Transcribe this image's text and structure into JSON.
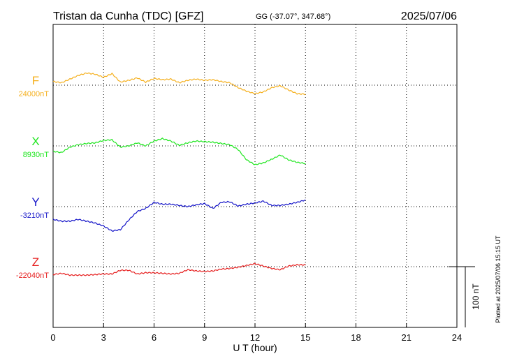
{
  "header": {
    "station": "Tristan da Cunha (TDC)  [GFZ]",
    "coords": "GG (-37.07°, 347.68°)",
    "date": "2025/07/06"
  },
  "side_note": "Plotted at 2025/07/06 15:15 UT",
  "colors": {
    "F": "#f5b01e",
    "X": "#1ee61e",
    "Y": "#1414c8",
    "Z": "#e61e1e",
    "axis": "#000000",
    "grid": "#000000"
  },
  "chart_data": {
    "type": "line",
    "title": "Tristan da Cunha (TDC)  [GFZ]",
    "xlabel": "U T (hour)",
    "xlim": [
      0,
      24
    ],
    "xticks": [
      0,
      3,
      6,
      9,
      12,
      15,
      18,
      21,
      24
    ],
    "scale_bar": "100 nT",
    "scale_bar_nT": 100,
    "grid": true,
    "series": [
      {
        "name": "F",
        "baseline_label": "24000nT",
        "baseline_nT": 24000,
        "x": [
          0,
          0.5,
          1,
          1.5,
          2,
          2.5,
          3,
          3.5,
          4,
          4.5,
          5,
          5.5,
          6,
          6.5,
          7,
          7.5,
          8,
          8.5,
          9,
          9.5,
          10,
          10.5,
          11,
          11.5,
          12,
          12.5,
          13,
          13.5,
          14,
          14.5,
          15
        ],
        "y": [
          24006,
          24004,
          24010,
          24016,
          24020,
          24018,
          24013,
          24019,
          24005,
          24008,
          24012,
          24005,
          24011,
          24009,
          24010,
          24004,
          24008,
          24010,
          24008,
          24009,
          24006,
          24004,
          23996,
          23990,
          23986,
          23989,
          23996,
          23999,
          23992,
          23986,
          23985
        ]
      },
      {
        "name": "X",
        "baseline_label": "8930nT",
        "baseline_nT": 8930,
        "x": [
          0,
          0.5,
          1,
          1.5,
          2,
          2.5,
          3,
          3.5,
          4,
          4.5,
          5,
          5.5,
          6,
          6.5,
          7,
          7.5,
          8,
          8.5,
          9,
          9.5,
          10,
          10.5,
          11,
          11.5,
          12,
          12.5,
          13,
          13.5,
          14,
          14.5,
          15
        ],
        "y": [
          8921,
          8919,
          8928,
          8932,
          8934,
          8935,
          8939,
          8940,
          8928,
          8930,
          8935,
          8930,
          8938,
          8942,
          8938,
          8931,
          8935,
          8938,
          8937,
          8936,
          8934,
          8932,
          8924,
          8907,
          8899,
          8902,
          8908,
          8915,
          8907,
          8903,
          8901
        ]
      },
      {
        "name": "Y",
        "baseline_label": "-3210nT",
        "baseline_nT": -3210,
        "x": [
          0,
          0.5,
          1,
          1.5,
          2,
          2.5,
          3,
          3.5,
          4,
          4.5,
          5,
          5.5,
          6,
          6.5,
          7,
          7.5,
          8,
          8.5,
          9,
          9.5,
          10,
          10.5,
          11,
          11.5,
          12,
          12.5,
          13,
          13.5,
          14,
          14.5,
          15
        ],
        "y": [
          -3231,
          -3234,
          -3234,
          -3231,
          -3234,
          -3237,
          -3242,
          -3250,
          -3248,
          -3232,
          -3218,
          -3213,
          -3203,
          -3206,
          -3206,
          -3208,
          -3210,
          -3207,
          -3205,
          -3213,
          -3203,
          -3202,
          -3209,
          -3206,
          -3204,
          -3201,
          -3208,
          -3208,
          -3206,
          -3203,
          -3199
        ]
      },
      {
        "name": "Z",
        "baseline_label": "-22040nT",
        "baseline_nT": -22040,
        "x": [
          0,
          0.5,
          1,
          1.5,
          2,
          2.5,
          3,
          3.5,
          4,
          4.5,
          5,
          5.5,
          6,
          6.5,
          7,
          7.5,
          8,
          8.5,
          9,
          9.5,
          10,
          10.5,
          11,
          11.5,
          12,
          12.5,
          13,
          13.5,
          14,
          14.5,
          15
        ],
        "y": [
          -22053,
          -22051,
          -22054,
          -22054,
          -22054,
          -22053,
          -22052,
          -22052,
          -22046,
          -22046,
          -22052,
          -22050,
          -22050,
          -22051,
          -22052,
          -22051,
          -22045,
          -22047,
          -22048,
          -22047,
          -22044,
          -22043,
          -22041,
          -22038,
          -22035,
          -22039,
          -22043,
          -22045,
          -22039,
          -22037,
          -22037
        ]
      }
    ]
  }
}
